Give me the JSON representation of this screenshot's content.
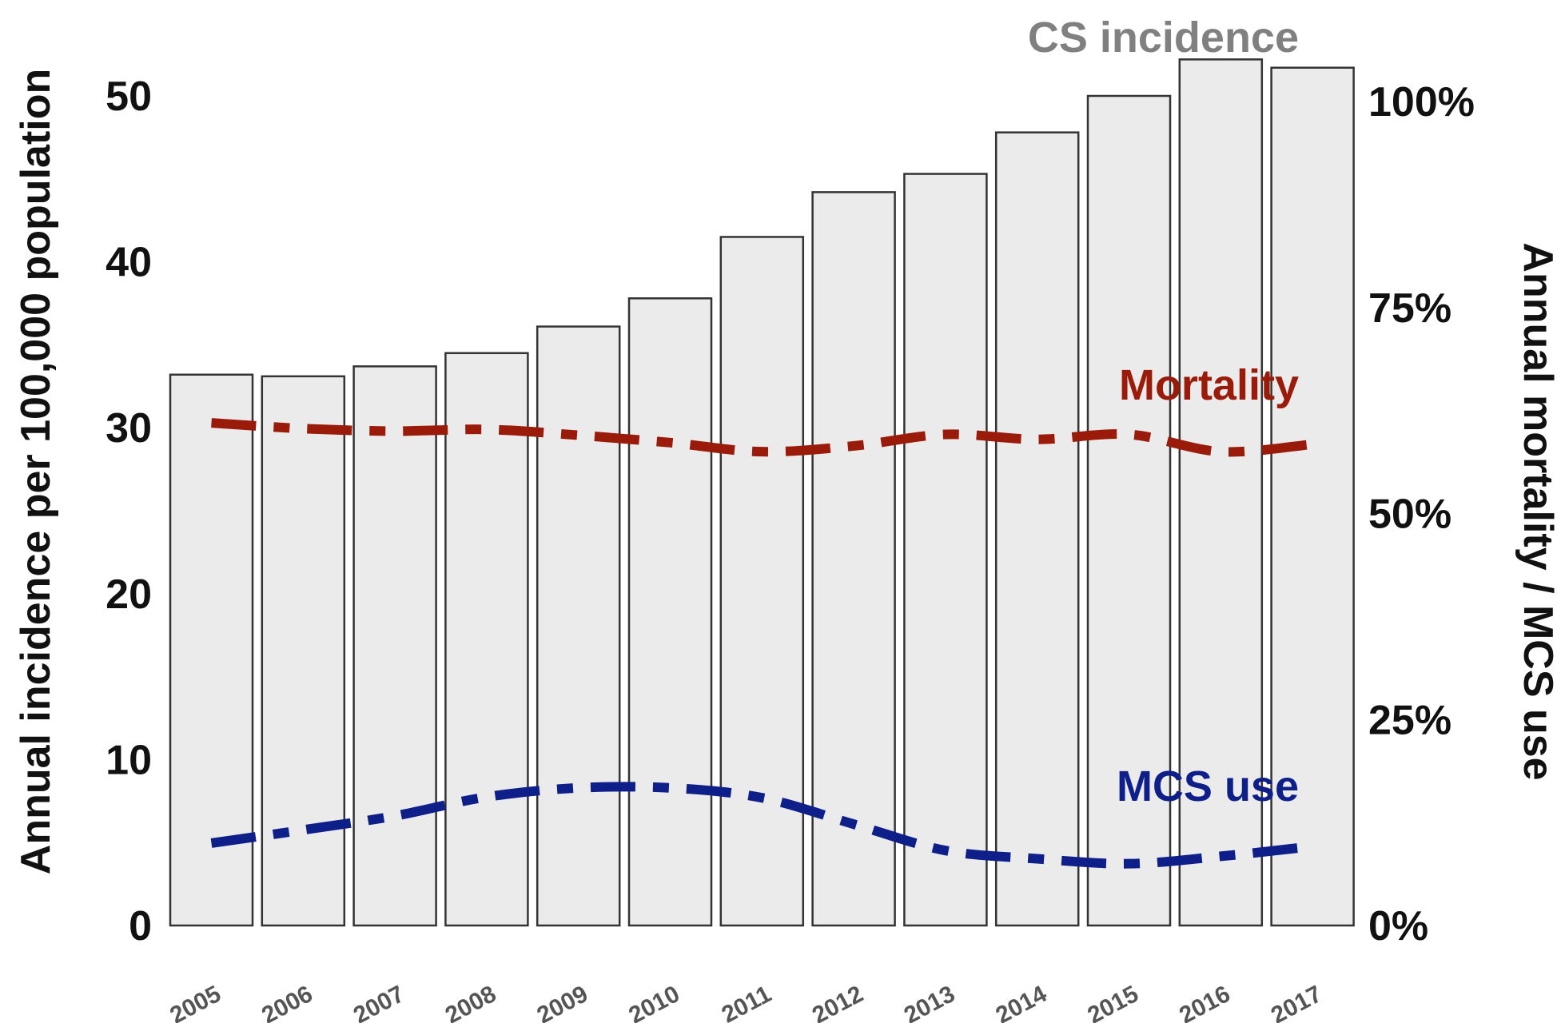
{
  "chart_data": {
    "type": "bar",
    "categories": [
      "2005",
      "2006",
      "2007",
      "2008",
      "2009",
      "2010",
      "2011",
      "2012",
      "2013",
      "2014",
      "2015",
      "2016",
      "2017"
    ],
    "bar_series": {
      "name": "CS incidence",
      "values": [
        33.2,
        33.1,
        33.7,
        34.5,
        36.1,
        37.8,
        41.5,
        44.2,
        45.3,
        47.8,
        50.0,
        52.2,
        51.7
      ],
      "color": "#ebebeb",
      "label_color": "#808080"
    },
    "line_series": [
      {
        "name": "Mortality",
        "axis": "right",
        "values": [
          61.0,
          60.3,
          60.0,
          60.2,
          59.5,
          58.6,
          57.5,
          58.2,
          59.6,
          59.0,
          59.6,
          57.5,
          58.4
        ],
        "color": "#9b1b0b"
      },
      {
        "name": "MCS use",
        "axis": "right",
        "values": [
          10.0,
          11.6,
          13.3,
          15.6,
          16.7,
          16.7,
          15.5,
          12.3,
          9.1,
          8.1,
          7.5,
          8.4,
          9.6
        ],
        "color": "#0f1f8a"
      }
    ],
    "ylabel": "Annual incidence per 100,000 population",
    "ylim": [
      0,
      50
    ],
    "yticks": [
      0,
      10,
      20,
      30,
      40,
      50
    ],
    "y2label": "Annual mortality / MCS use",
    "y2lim": [
      0,
      100
    ],
    "y2ticks": [
      "0%",
      "25%",
      "50%",
      "75%",
      "100%"
    ],
    "y2tick_values": [
      0,
      25,
      50,
      75,
      100
    ],
    "xlabel": "",
    "grid": false
  }
}
